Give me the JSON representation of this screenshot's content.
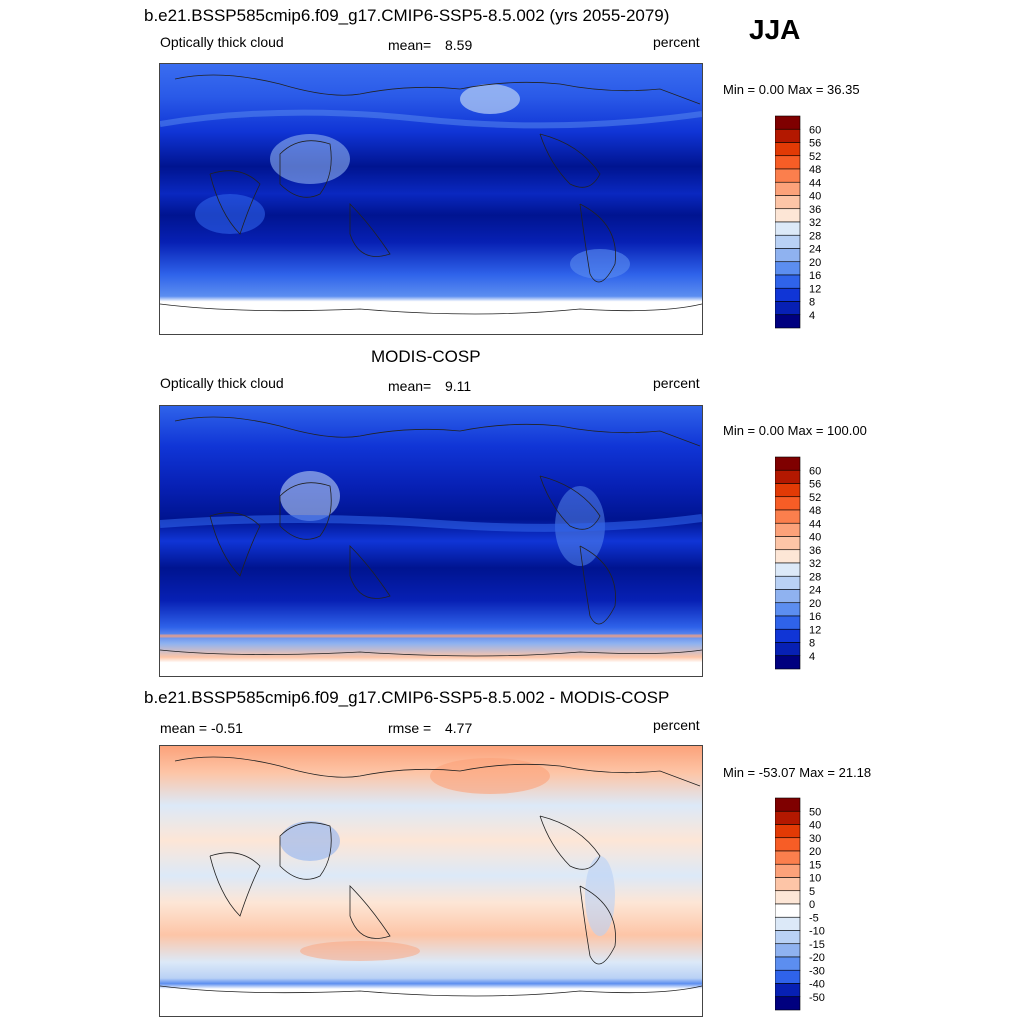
{
  "season": "JJA",
  "chart_data": [
    {
      "type": "heatmap",
      "title": "b.e21.BSSP585cmip6.f09_g17.CMIP6-SSP5-8.5.002 (yrs 2055-2079)",
      "left_label": "Optically thick cloud",
      "stat_label": "mean=",
      "stat_value": "8.59",
      "units": "percent",
      "minmax": "Min =   0.00 Max =  36.35",
      "min": 0.0,
      "max": 36.35,
      "mean": 8.59,
      "colorbar_labels": [
        "60",
        "56",
        "52",
        "48",
        "44",
        "40",
        "36",
        "32",
        "28",
        "24",
        "20",
        "16",
        "12",
        "8",
        "4"
      ],
      "colorbar_colors": [
        "#7f0000",
        "#b31800",
        "#e23a05",
        "#f75d26",
        "#fb7f4d",
        "#fca27a",
        "#fdc5a7",
        "#fde6d6",
        "#dce9f8",
        "#b9d1f5",
        "#8fb2f0",
        "#5c8ef0",
        "#2f63ea",
        "#1035d6",
        "#0720b4",
        "#00007f"
      ]
    },
    {
      "type": "heatmap",
      "title": "MODIS-COSP",
      "left_label": "Optically thick cloud",
      "stat_label": "mean=",
      "stat_value": "9.11",
      "units": "percent",
      "minmax": "Min =   0.00 Max = 100.00",
      "min": 0.0,
      "max": 100.0,
      "mean": 9.11,
      "colorbar_labels": [
        "60",
        "56",
        "52",
        "48",
        "44",
        "40",
        "36",
        "32",
        "28",
        "24",
        "20",
        "16",
        "12",
        "8",
        "4"
      ],
      "colorbar_colors": [
        "#7f0000",
        "#b31800",
        "#e23a05",
        "#f75d26",
        "#fb7f4d",
        "#fca27a",
        "#fdc5a7",
        "#fde6d6",
        "#dce9f8",
        "#b9d1f5",
        "#8fb2f0",
        "#5c8ef0",
        "#2f63ea",
        "#1035d6",
        "#0720b4",
        "#00007f"
      ]
    },
    {
      "type": "heatmap",
      "title": "b.e21.BSSP585cmip6.f09_g17.CMIP6-SSP5-8.5.002 - MODIS-COSP",
      "left_label": "mean =  -0.51",
      "stat_label": "rmse =",
      "stat_value": "4.77",
      "units": "percent",
      "minmax": "Min = -53.07 Max =  21.18",
      "min": -53.07,
      "max": 21.18,
      "mean": -0.51,
      "rmse": 4.77,
      "colorbar_labels": [
        "50",
        "40",
        "30",
        "20",
        "15",
        "10",
        "5",
        "0",
        "-5",
        "-10",
        "-15",
        "-20",
        "-30",
        "-40",
        "-50"
      ],
      "colorbar_colors": [
        "#7f0000",
        "#b31800",
        "#e23a05",
        "#f75d26",
        "#fb7f4d",
        "#fca27a",
        "#fdc5a7",
        "#fde6d6",
        "#ffffff",
        "#dce9f8",
        "#b9d1f5",
        "#8fb2f0",
        "#5c8ef0",
        "#2f63ea",
        "#0720b4",
        "#00007f"
      ]
    }
  ]
}
